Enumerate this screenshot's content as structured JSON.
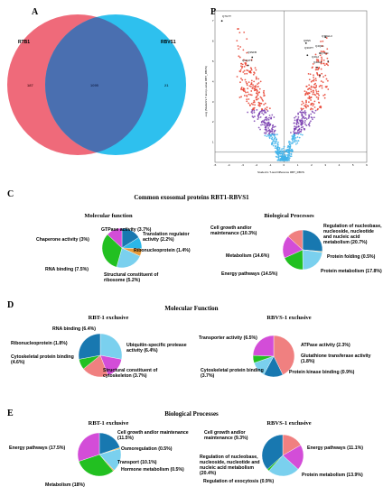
{
  "panels": {
    "a": {
      "letter": "A",
      "venn": {
        "left_label": "RTB1",
        "right_label": "RBVS1",
        "left_only": "187",
        "overlap": "1095",
        "right_only": "21",
        "left_color": "#ef6a7a",
        "right_color": "#2ec0ee",
        "overlap_color": "#4a6fb0"
      }
    },
    "b": {
      "letter": "B",
      "ylabel": "-Log (Student's T-test p-value RBT_RBVS)",
      "xlabel": "Student's T-test Difference RBT_RBVS",
      "x_ticks": [
        "-5",
        "-4",
        "-3",
        "-2",
        "-1",
        "0",
        "1",
        "2",
        "3",
        "4",
        "5",
        "6"
      ],
      "y_ticks": [
        "7",
        "6",
        "5",
        "4",
        "3",
        "2",
        "1"
      ],
      "point_labels": {
        "top_left": "Q7GTT",
        "mid_left_1": "Q3NFB",
        "mid_left_2": "Q4Q4T1",
        "right_1": "Q7DHL3",
        "right_2": "Q6N5",
        "right_3": "Q3CPT",
        "right_4": "Q4QL1",
        "right_5": "Q7DO",
        "right_6": "Q4G2",
        "right_7": "Q4AL8"
      }
    },
    "c": {
      "letter": "C",
      "title": "Common exosomal proteins RBT1-RBVS1",
      "left_title": "Molecular function",
      "right_title": "Biological Processes",
      "left_labels": {
        "gtpase": "GTPase activity (3.7%)",
        "translation": "Translation regulator activity (2.2%)",
        "chaperone": "Chaperone activity (3%)",
        "ribonucleo": "Ribonucleoprotein (1.4%)",
        "rna": "RNA binding (7.5%)",
        "structural": "Structural constituent of ribosome (5.2%)"
      },
      "right_labels": {
        "cell_growth": "Cell growth and/or maintenance (10.3%)",
        "regulation": "Regulation of nucleobase, nucleoside, nucleotide and nucleic acid metabolism (20.7%)",
        "metabolism": "Metabolism (14.6%)",
        "folding": "Protein folding (0.5%)",
        "energy": "Energy pathways (14.5%)",
        "protein_metab": "Protein metabolism (17.8%)"
      }
    },
    "d": {
      "letter": "D",
      "title": "Molecular Function",
      "left_title": "RBT-1 exclusive",
      "right_title": "RBVS-1 exclusive",
      "left_labels": {
        "rna": "RNA binding (6.4%)",
        "ribonucleo": "Ribonucleoprotein (1.8%)",
        "ubiquitin": "Ubiquitin-specific protease activity (6.4%)",
        "cytoskeletal": "Cytoskeletal protein binding (4.6%)",
        "structural": "Structural constituent of cytoskeleton (3.7%)"
      },
      "right_labels": {
        "transporter": "Transporter activity (6.5%)",
        "atpase": "ATPase activity (2.3%)",
        "glutathione": "Glutathione transferase activity (1.8%)",
        "cytoskeletal": "Cytoskeletal protein binding (3.7%)",
        "kinase": "Protein kinase binding (0.9%)"
      }
    },
    "e": {
      "letter": "E",
      "title": "Biological Processes",
      "left_title": "RBT-1 exclusive",
      "right_title": "RBVS-1 exclusive",
      "left_labels": {
        "cell_growth": "Cell growth and/or maintenance (11.5%)",
        "energy": "Energy pathways (17.5%)",
        "osmoregulation": "Osmoregulation (0.5%)",
        "transport": "Transport (10.1%)",
        "hormone": "Hormone metabolism (0.5%)",
        "metabolism": "Metabolism (18%)"
      },
      "right_labels": {
        "cell_growth": "Cell growth and/or maintenance (9.3%)",
        "energy": "Energy pathways (11.1%)",
        "regulation": "Regulation of nucleobase, nucleoside, nucleotide and nucleic acid metabolism (20.4%)",
        "protein_metab": "Protein metabolism (13.9%)",
        "exocytosis": "Regulation of exocytosis (0.9%)"
      }
    }
  },
  "chart_data": [
    {
      "type": "pie",
      "panel": "C-left",
      "labels": [
        "GTPase activity",
        "Translation regulator activity",
        "Ribonucleoprotein",
        "Structural constituent of ribosome",
        "RNA binding",
        "Chaperone activity"
      ],
      "values": [
        3.7,
        2.2,
        1.4,
        5.2,
        7.5,
        3.0
      ],
      "colors": [
        "#1878b0",
        "#2ab7e8",
        "#e89b3a",
        "#7ad0ee",
        "#22c021",
        "#d34dd8"
      ]
    },
    {
      "type": "pie",
      "panel": "C-right",
      "labels": [
        "Regulation of nucleobase, nucleoside, nucleotide and nucleic acid metabolism",
        "Protein folding",
        "Protein metabolism",
        "Energy pathways",
        "Metabolism",
        "Cell growth and/or maintenance"
      ],
      "values": [
        20.7,
        0.5,
        17.8,
        14.5,
        14.6,
        10.3
      ],
      "colors": [
        "#1878b0",
        "#f0b030",
        "#7ad0ee",
        "#22c021",
        "#d34dd8",
        "#f08080"
      ]
    },
    {
      "type": "pie",
      "panel": "D-left",
      "labels": [
        "Ubiquitin-specific protease activity",
        "Structural constituent of cytoskeleton",
        "Cytoskeletal protein binding",
        "Ribonucleoprotein",
        "RNA binding"
      ],
      "values": [
        6.4,
        3.7,
        4.6,
        1.8,
        6.4
      ],
      "colors": [
        "#7ad0ee",
        "#d34dd8",
        "#f08080",
        "#22c021",
        "#1878b0"
      ]
    },
    {
      "type": "pie",
      "panel": "D-right",
      "labels": [
        "Transporter activity",
        "ATPase activity",
        "Glutathione transferase activity",
        "Protein kinase binding",
        "Cytoskeletal protein binding"
      ],
      "values": [
        6.5,
        2.3,
        1.8,
        0.9,
        3.7
      ],
      "colors": [
        "#f08080",
        "#1878b0",
        "#7ad0ee",
        "#22c021",
        "#d34dd8"
      ]
    },
    {
      "type": "pie",
      "panel": "E-left",
      "labels": [
        "Cell growth and/or maintenance",
        "Osmoregulation",
        "Transport",
        "Hormone metabolism",
        "Metabolism",
        "Energy pathways"
      ],
      "values": [
        11.5,
        0.5,
        10.1,
        0.5,
        18.0,
        17.5
      ],
      "colors": [
        "#1878b0",
        "#f0b030",
        "#7ad0ee",
        "#e89b3a",
        "#22c021",
        "#d34dd8"
      ]
    },
    {
      "type": "pie",
      "panel": "E-right",
      "labels": [
        "Cell growth and/or maintenance",
        "Energy pathways",
        "Protein metabolism",
        "Regulation of exocytosis",
        "Regulation of nucleobase, nucleoside, nucleotide and nucleic acid metabolism"
      ],
      "values": [
        9.3,
        11.1,
        13.9,
        0.9,
        20.4
      ],
      "colors": [
        "#f08080",
        "#d34dd8",
        "#7ad0ee",
        "#22c021",
        "#1878b0"
      ]
    },
    {
      "type": "scatter",
      "panel": "B",
      "xlim": [
        -5,
        6
      ],
      "ylim": [
        0,
        7.5
      ],
      "colors": {
        "low": "#3fb3ea",
        "mid": "#7a3fb0",
        "high": "#e8402e"
      }
    }
  ]
}
